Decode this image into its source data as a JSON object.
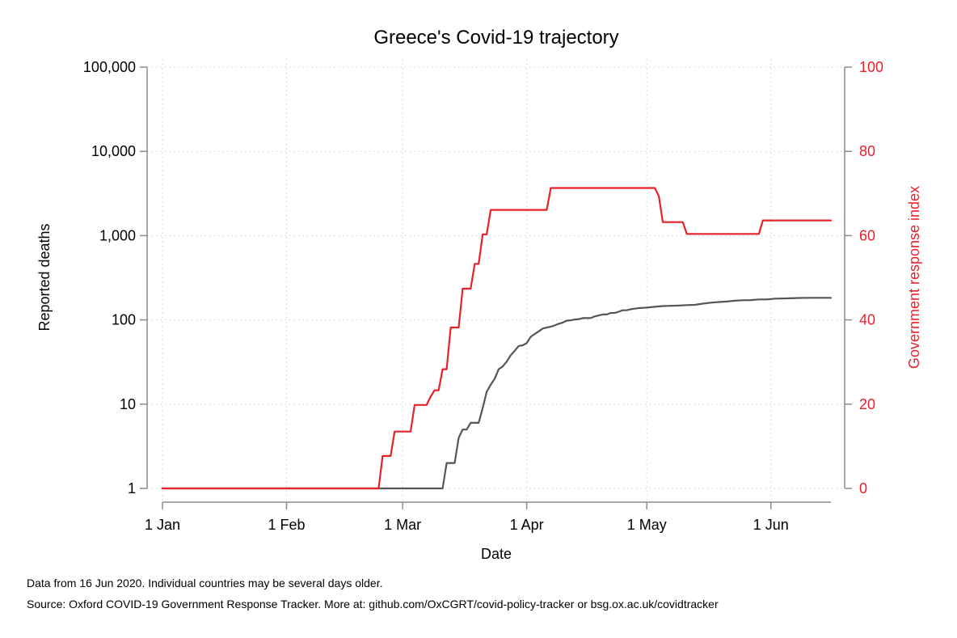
{
  "chart_data": {
    "type": "line",
    "title": "Greece's Covid-19 trajectory",
    "xlabel": "Date",
    "ylabel_left": "Reported deaths",
    "ylabel_right": "Government response index",
    "left_axis_scale": "log",
    "left_ylim": [
      1,
      100000
    ],
    "right_ylim": [
      0,
      100
    ],
    "xlim": [
      "2020-01-01",
      "2020-06-16"
    ],
    "grid": true,
    "x_ticks": [
      {
        "date": "2020-01-01",
        "label": "1 Jan"
      },
      {
        "date": "2020-02-01",
        "label": "1 Feb"
      },
      {
        "date": "2020-03-01",
        "label": "1 Mar"
      },
      {
        "date": "2020-04-01",
        "label": "1 Apr"
      },
      {
        "date": "2020-05-01",
        "label": "1 May"
      },
      {
        "date": "2020-06-01",
        "label": "1 Jun"
      }
    ],
    "left_ticks": [
      {
        "value": 1,
        "label": "1"
      },
      {
        "value": 10,
        "label": "10"
      },
      {
        "value": 100,
        "label": "100"
      },
      {
        "value": 1000,
        "label": "1,000"
      },
      {
        "value": 10000,
        "label": "10,000"
      },
      {
        "value": 100000,
        "label": "100,000"
      }
    ],
    "right_ticks": [
      {
        "value": 0,
        "label": "0"
      },
      {
        "value": 20,
        "label": "20"
      },
      {
        "value": 40,
        "label": "40"
      },
      {
        "value": 60,
        "label": "60"
      },
      {
        "value": 80,
        "label": "80"
      },
      {
        "value": 100,
        "label": "100"
      }
    ],
    "series": [
      {
        "axis": "left",
        "color": "#555555",
        "points": [
          [
            "2020-01-01",
            1
          ],
          [
            "2020-03-11",
            1
          ],
          [
            "2020-03-12",
            2
          ],
          [
            "2020-03-14",
            2
          ],
          [
            "2020-03-15",
            4
          ],
          [
            "2020-03-16",
            5
          ],
          [
            "2020-03-17",
            5
          ],
          [
            "2020-03-18",
            6
          ],
          [
            "2020-03-20",
            6
          ],
          [
            "2020-03-21",
            9
          ],
          [
            "2020-03-22",
            14
          ],
          [
            "2020-03-23",
            17
          ],
          [
            "2020-03-24",
            20
          ],
          [
            "2020-03-25",
            26
          ],
          [
            "2020-03-26",
            28
          ],
          [
            "2020-03-27",
            32
          ],
          [
            "2020-03-28",
            38
          ],
          [
            "2020-03-29",
            43
          ],
          [
            "2020-03-30",
            49
          ],
          [
            "2020-03-31",
            50
          ],
          [
            "2020-04-01",
            53
          ],
          [
            "2020-04-02",
            63
          ],
          [
            "2020-04-03",
            68
          ],
          [
            "2020-04-04",
            73
          ],
          [
            "2020-04-05",
            79
          ],
          [
            "2020-04-06",
            81
          ],
          [
            "2020-04-07",
            83
          ],
          [
            "2020-04-08",
            86
          ],
          [
            "2020-04-09",
            90
          ],
          [
            "2020-04-10",
            93
          ],
          [
            "2020-04-11",
            98
          ],
          [
            "2020-04-12",
            99
          ],
          [
            "2020-04-13",
            101
          ],
          [
            "2020-04-14",
            102
          ],
          [
            "2020-04-15",
            105
          ],
          [
            "2020-04-16",
            105
          ],
          [
            "2020-04-17",
            105
          ],
          [
            "2020-04-18",
            110
          ],
          [
            "2020-04-19",
            113
          ],
          [
            "2020-04-20",
            116
          ],
          [
            "2020-04-21",
            116
          ],
          [
            "2020-04-22",
            121
          ],
          [
            "2020-04-23",
            121
          ],
          [
            "2020-04-24",
            125
          ],
          [
            "2020-04-25",
            130
          ],
          [
            "2020-04-26",
            130
          ],
          [
            "2020-04-27",
            134
          ],
          [
            "2020-04-28",
            136
          ],
          [
            "2020-04-29",
            138
          ],
          [
            "2020-04-30",
            139
          ],
          [
            "2020-05-01",
            140
          ],
          [
            "2020-05-03",
            143
          ],
          [
            "2020-05-05",
            146
          ],
          [
            "2020-05-07",
            147
          ],
          [
            "2020-05-09",
            148
          ],
          [
            "2020-05-11",
            150
          ],
          [
            "2020-05-13",
            151
          ],
          [
            "2020-05-15",
            156
          ],
          [
            "2020-05-17",
            160
          ],
          [
            "2020-05-19",
            163
          ],
          [
            "2020-05-21",
            165
          ],
          [
            "2020-05-23",
            169
          ],
          [
            "2020-05-25",
            171
          ],
          [
            "2020-05-27",
            172
          ],
          [
            "2020-05-29",
            175
          ],
          [
            "2020-05-31",
            175
          ],
          [
            "2020-06-02",
            179
          ],
          [
            "2020-06-05",
            180
          ],
          [
            "2020-06-08",
            182
          ],
          [
            "2020-06-11",
            183
          ],
          [
            "2020-06-14",
            183
          ],
          [
            "2020-06-16",
            183
          ]
        ]
      },
      {
        "axis": "right",
        "color": "#e8202a",
        "points": [
          [
            "2020-01-01",
            0
          ],
          [
            "2020-02-24",
            0
          ],
          [
            "2020-02-25",
            7.7
          ],
          [
            "2020-02-27",
            7.7
          ],
          [
            "2020-02-28",
            13.5
          ],
          [
            "2020-03-03",
            13.5
          ],
          [
            "2020-03-04",
            19.8
          ],
          [
            "2020-03-07",
            19.8
          ],
          [
            "2020-03-08",
            21.8
          ],
          [
            "2020-03-09",
            23.3
          ],
          [
            "2020-03-10",
            23.3
          ],
          [
            "2020-03-11",
            28.3
          ],
          [
            "2020-03-12",
            28.3
          ],
          [
            "2020-03-13",
            38.2
          ],
          [
            "2020-03-15",
            38.2
          ],
          [
            "2020-03-16",
            47.4
          ],
          [
            "2020-03-18",
            47.4
          ],
          [
            "2020-03-19",
            53.3
          ],
          [
            "2020-03-20",
            53.3
          ],
          [
            "2020-03-21",
            60.3
          ],
          [
            "2020-03-22",
            60.3
          ],
          [
            "2020-03-23",
            66.1
          ],
          [
            "2020-04-06",
            66.1
          ],
          [
            "2020-04-07",
            71.3
          ],
          [
            "2020-05-03",
            71.3
          ],
          [
            "2020-05-04",
            69.4
          ],
          [
            "2020-05-05",
            63.2
          ],
          [
            "2020-05-10",
            63.2
          ],
          [
            "2020-05-11",
            60.4
          ],
          [
            "2020-05-29",
            60.4
          ],
          [
            "2020-05-30",
            63.6
          ],
          [
            "2020-06-16",
            63.6
          ]
        ]
      }
    ],
    "notes": [
      "Data from 16 Jun 2020. Individual countries may be several days older.",
      "Source: Oxford COVID-19 Government Response Tracker. More at: github.com/OxCGRT/covid-policy-tracker or bsg.ox.ac.uk/covidtracker"
    ]
  }
}
